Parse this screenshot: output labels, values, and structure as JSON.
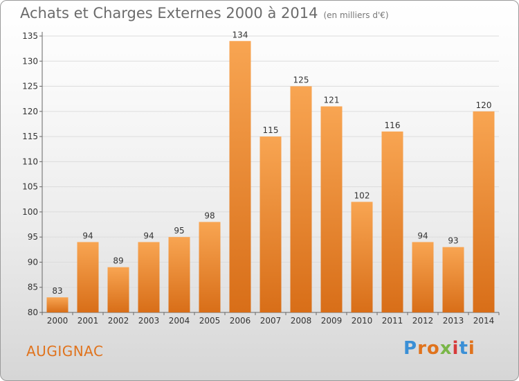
{
  "header": {
    "title": "Achats et Charges Externes 2000 à 2014",
    "subtitle": "(en milliers d'€)"
  },
  "footer": {
    "commune": "AUGIGNAC",
    "brand": "Proxiti"
  },
  "colors": {
    "bar_light": "#f8a552",
    "bar_dark": "#d86e18",
    "commune_text": "#e0731d"
  },
  "chart_data": {
    "type": "bar",
    "title": "Achats et Charges Externes 2000 à 2014",
    "subtitle": "(en milliers d'€)",
    "xlabel": "",
    "ylabel": "",
    "categories": [
      "2000",
      "2001",
      "2002",
      "2003",
      "2004",
      "2005",
      "2006",
      "2007",
      "2008",
      "2009",
      "2010",
      "2011",
      "2012",
      "2013",
      "2014"
    ],
    "values": [
      83,
      94,
      89,
      94,
      95,
      98,
      134,
      115,
      125,
      121,
      102,
      116,
      94,
      93,
      120
    ],
    "ylim": [
      80,
      135
    ],
    "yticks": [
      80,
      85,
      90,
      95,
      100,
      105,
      110,
      115,
      120,
      125,
      130,
      135
    ],
    "grid": true,
    "legend": "none"
  }
}
